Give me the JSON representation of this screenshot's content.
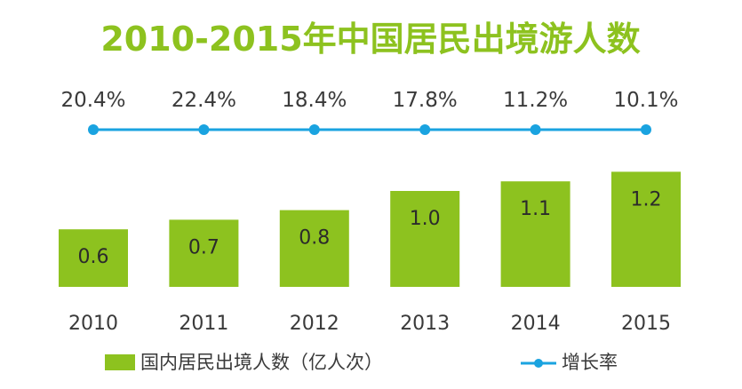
{
  "chart_data": {
    "type": "bar",
    "title": "2010-2015年中国居民出境游人数",
    "categories": [
      "2010",
      "2011",
      "2012",
      "2013",
      "2014",
      "2015"
    ],
    "series": [
      {
        "name": "国内居民出境人数（亿人次）",
        "values": [
          0.6,
          0.7,
          0.8,
          1.0,
          1.1,
          1.2
        ],
        "value_labels": [
          "0.6",
          "0.7",
          "0.8",
          "1.0",
          "1.1",
          "1.2"
        ],
        "color": "#8dc21f"
      },
      {
        "name": "增长率",
        "type": "line",
        "values": [
          20.4,
          22.4,
          18.4,
          17.8,
          11.2,
          10.1
        ],
        "value_labels": [
          "20.4%",
          "22.4%",
          "18.4%",
          "17.8%",
          "11.2%",
          "10.1%"
        ],
        "color": "#1aa3e0"
      }
    ],
    "legend_position": "bottom",
    "grid": false
  },
  "colors": {
    "title": "#8dc21f",
    "bar": "#8dc21f",
    "line": "#1aa3e0",
    "text": "#3a3a3a",
    "bar_label": "#2b2b2b"
  }
}
